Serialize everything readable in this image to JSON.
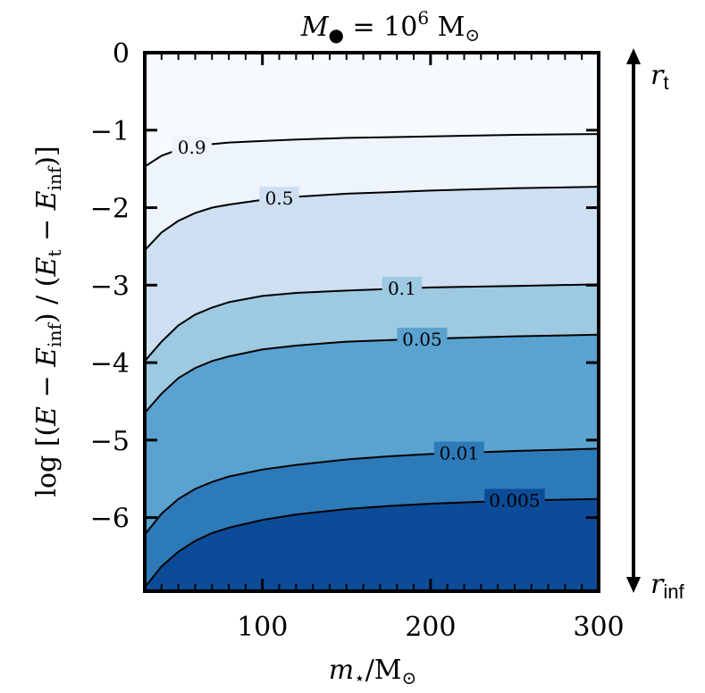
{
  "chart_data": {
    "type": "contour",
    "title": "M• = 10⁶ M⊙",
    "xlabel": "m⋆/M⊙",
    "ylabel": "log [(E − Einf) / (Et − Einf)]",
    "xlim": [
      30,
      300
    ],
    "ylim": [
      -6.95,
      0
    ],
    "x_ticks": [
      100,
      200,
      300
    ],
    "y_ticks": [
      0,
      -1,
      -2,
      -3,
      -4,
      -5,
      -6
    ],
    "x_tick_labels": [
      "100",
      "200",
      "300"
    ],
    "y_tick_labels": [
      "0",
      "−1",
      "−2",
      "−3",
      "−4",
      "−5",
      "−6"
    ],
    "grid": false,
    "colormap": "Blues",
    "x": [
      30,
      40,
      50,
      60,
      70,
      80,
      100,
      120,
      150,
      175,
      200,
      250,
      300
    ],
    "contours": [
      {
        "level": "0.9",
        "label": "0.9",
        "fill": "#eef4fb",
        "y": [
          -1.47,
          -1.33,
          -1.25,
          -1.21,
          -1.18,
          -1.16,
          -1.14,
          -1.12,
          -1.1,
          -1.09,
          -1.08,
          -1.06,
          -1.05
        ]
      },
      {
        "level": "0.5",
        "label": "0.5",
        "fill": "#cddff1",
        "y": [
          -2.55,
          -2.32,
          -2.17,
          -2.07,
          -2.0,
          -1.96,
          -1.9,
          -1.86,
          -1.82,
          -1.8,
          -1.78,
          -1.75,
          -1.73
        ]
      },
      {
        "level": "0.1",
        "label": "0.1",
        "fill": "#9dc9e1",
        "y": [
          -3.98,
          -3.73,
          -3.52,
          -3.38,
          -3.29,
          -3.22,
          -3.14,
          -3.1,
          -3.07,
          -3.05,
          -3.03,
          -3.01,
          -2.99
        ]
      },
      {
        "level": "0.05",
        "label": "0.05",
        "fill": "#5aa2cf",
        "y": [
          -4.65,
          -4.4,
          -4.2,
          -4.07,
          -3.98,
          -3.92,
          -3.83,
          -3.78,
          -3.73,
          -3.71,
          -3.69,
          -3.66,
          -3.64
        ]
      },
      {
        "level": "0.01",
        "label": "0.01",
        "fill": "#2d7ab9",
        "y": [
          -6.22,
          -5.95,
          -5.76,
          -5.63,
          -5.54,
          -5.47,
          -5.38,
          -5.32,
          -5.25,
          -5.21,
          -5.18,
          -5.14,
          -5.11
        ]
      },
      {
        "level": "0.005",
        "label": "0.005",
        "fill": "#0c4b97",
        "y": [
          -6.9,
          -6.63,
          -6.44,
          -6.3,
          -6.2,
          -6.13,
          -6.03,
          -5.96,
          -5.89,
          -5.85,
          -5.82,
          -5.78,
          -5.76
        ]
      }
    ],
    "top_fill": "#f7fbff",
    "label_positions": [
      {
        "label": "0.9",
        "x": 58,
        "y": -1.22
      },
      {
        "label": "0.5",
        "x": 110,
        "y": -1.88
      },
      {
        "label": "0.1",
        "x": 183,
        "y": -3.04
      },
      {
        "label": "0.05",
        "x": 195,
        "y": -3.7
      },
      {
        "label": "0.01",
        "x": 217,
        "y": -5.17
      },
      {
        "label": "0.005",
        "x": 250,
        "y": -5.78
      }
    ],
    "arrow_labels": {
      "top": "r",
      "top_sub": "t",
      "bottom": "r",
      "bottom_sub": "inf"
    }
  }
}
